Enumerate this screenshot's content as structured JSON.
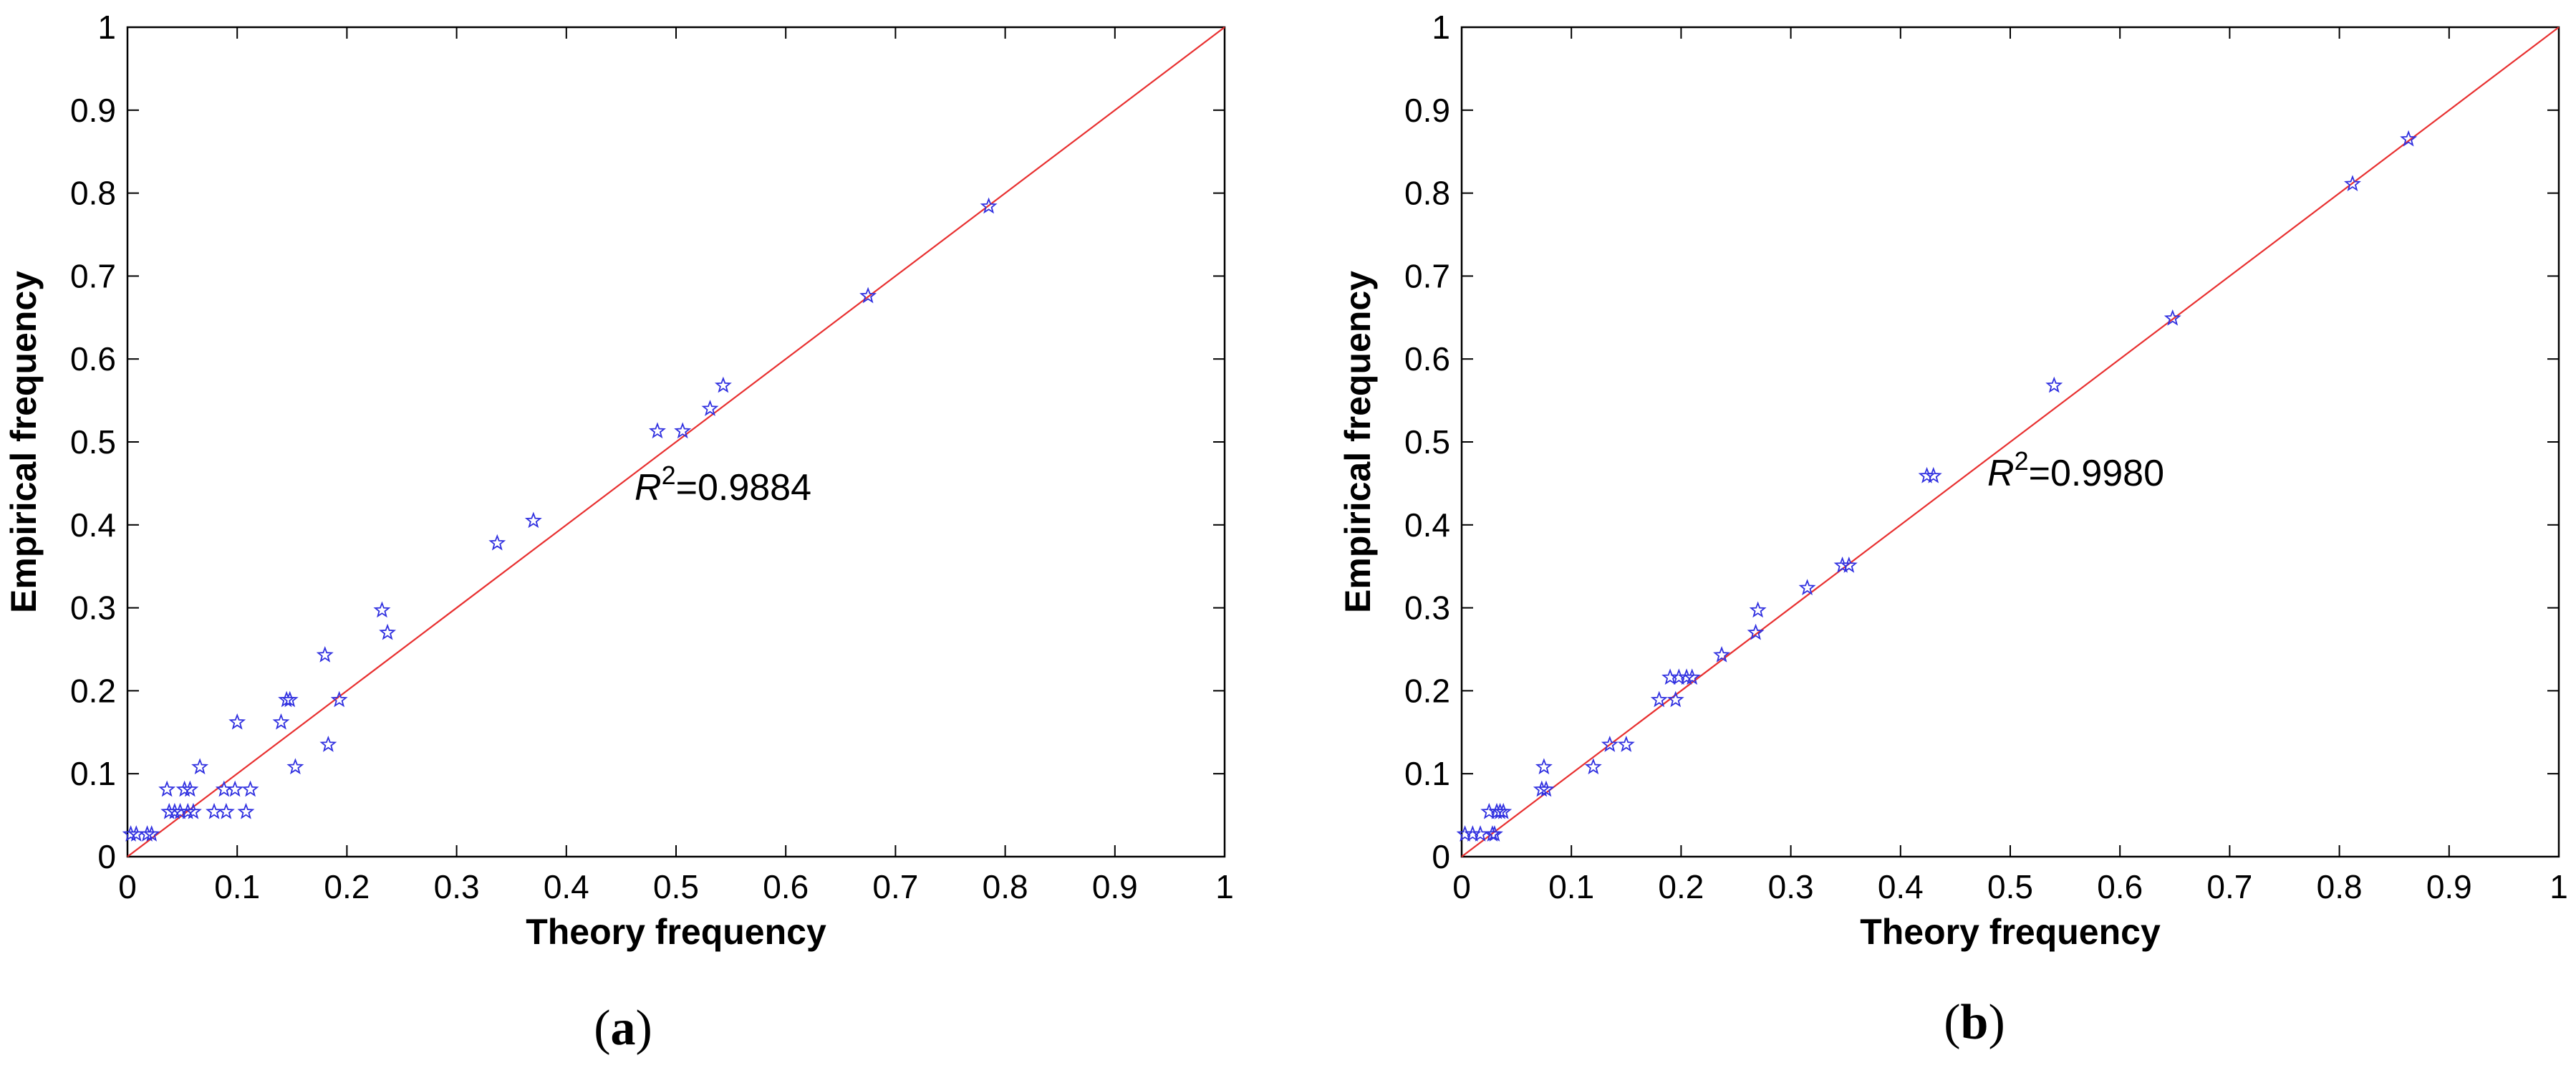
{
  "chart_data": [
    {
      "type": "scatter",
      "panel": "(a)",
      "xlabel": "Theory frequency",
      "ylabel": "Empirical frequency",
      "xlim": [
        0,
        1
      ],
      "ylim": [
        0,
        1
      ],
      "x_ticks": [
        "0",
        "0.1",
        "0.2",
        "0.3",
        "0.4",
        "0.5",
        "0.6",
        "0.7",
        "0.8",
        "0.9",
        "1"
      ],
      "y_ticks": [
        "0",
        "0.1",
        "0.2",
        "0.3",
        "0.4",
        "0.5",
        "0.6",
        "0.7",
        "0.8",
        "0.9",
        "1"
      ],
      "annotation": {
        "r_label": "R",
        "exponent": "2",
        "value": "=0.9884"
      },
      "marker": "star",
      "marker_color": "#3030e0",
      "line": {
        "type": "y=x",
        "color": "#e83030"
      },
      "points": [
        [
          0.003,
          0.027
        ],
        [
          0.008,
          0.027
        ],
        [
          0.018,
          0.027
        ],
        [
          0.022,
          0.027
        ],
        [
          0.036,
          0.081
        ],
        [
          0.038,
          0.054
        ],
        [
          0.043,
          0.054
        ],
        [
          0.048,
          0.054
        ],
        [
          0.052,
          0.081
        ],
        [
          0.055,
          0.054
        ],
        [
          0.057,
          0.081
        ],
        [
          0.06,
          0.054
        ],
        [
          0.066,
          0.108
        ],
        [
          0.079,
          0.054
        ],
        [
          0.088,
          0.081
        ],
        [
          0.09,
          0.054
        ],
        [
          0.098,
          0.081
        ],
        [
          0.1,
          0.162
        ],
        [
          0.108,
          0.054
        ],
        [
          0.112,
          0.081
        ],
        [
          0.14,
          0.162
        ],
        [
          0.145,
          0.189
        ],
        [
          0.148,
          0.189
        ],
        [
          0.153,
          0.108
        ],
        [
          0.18,
          0.243
        ],
        [
          0.183,
          0.135
        ],
        [
          0.193,
          0.189
        ],
        [
          0.232,
          0.297
        ],
        [
          0.237,
          0.27
        ],
        [
          0.337,
          0.378
        ],
        [
          0.37,
          0.405
        ],
        [
          0.483,
          0.513
        ],
        [
          0.506,
          0.513
        ],
        [
          0.531,
          0.54
        ],
        [
          0.543,
          0.568
        ],
        [
          0.675,
          0.676
        ],
        [
          0.785,
          0.784
        ]
      ]
    },
    {
      "type": "scatter",
      "panel": "(b)",
      "xlabel": "Theory frequency",
      "ylabel": "Empirical frequency",
      "xlim": [
        0,
        1
      ],
      "ylim": [
        0,
        1
      ],
      "x_ticks": [
        "0",
        "0.1",
        "0.2",
        "0.3",
        "0.4",
        "0.5",
        "0.6",
        "0.7",
        "0.8",
        "0.9",
        "1"
      ],
      "y_ticks": [
        "0",
        "0.1",
        "0.2",
        "0.3",
        "0.4",
        "0.5",
        "0.6",
        "0.7",
        "0.8",
        "0.9",
        "1"
      ],
      "annotation": {
        "r_label": "R",
        "exponent": "2",
        "value": "=0.9980"
      },
      "marker": "star",
      "marker_color": "#3030e0",
      "line": {
        "type": "y=x",
        "color": "#e83030"
      },
      "points": [
        [
          0.003,
          0.027
        ],
        [
          0.01,
          0.027
        ],
        [
          0.017,
          0.027
        ],
        [
          0.025,
          0.054
        ],
        [
          0.028,
          0.027
        ],
        [
          0.03,
          0.027
        ],
        [
          0.032,
          0.054
        ],
        [
          0.035,
          0.054
        ],
        [
          0.038,
          0.054
        ],
        [
          0.073,
          0.081
        ],
        [
          0.075,
          0.108
        ],
        [
          0.077,
          0.081
        ],
        [
          0.12,
          0.108
        ],
        [
          0.135,
          0.135
        ],
        [
          0.15,
          0.135
        ],
        [
          0.18,
          0.189
        ],
        [
          0.19,
          0.216
        ],
        [
          0.195,
          0.189
        ],
        [
          0.198,
          0.216
        ],
        [
          0.205,
          0.216
        ],
        [
          0.21,
          0.216
        ],
        [
          0.237,
          0.243
        ],
        [
          0.268,
          0.27
        ],
        [
          0.27,
          0.297
        ],
        [
          0.315,
          0.324
        ],
        [
          0.347,
          0.351
        ],
        [
          0.353,
          0.351
        ],
        [
          0.424,
          0.459
        ],
        [
          0.43,
          0.459
        ],
        [
          0.54,
          0.568
        ],
        [
          0.648,
          0.649
        ],
        [
          0.812,
          0.811
        ],
        [
          0.863,
          0.865
        ]
      ]
    }
  ]
}
